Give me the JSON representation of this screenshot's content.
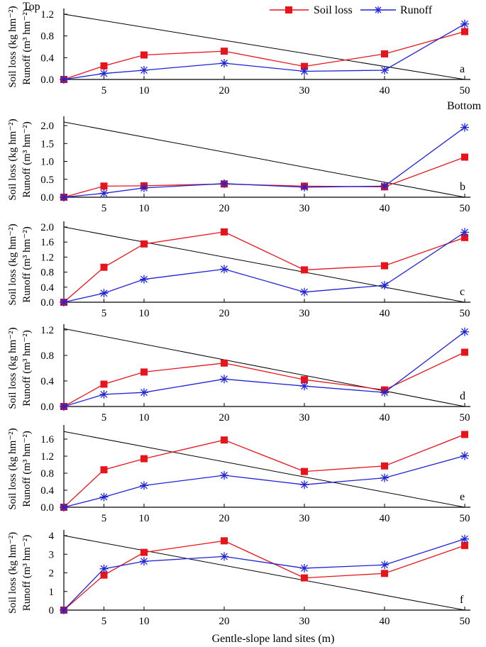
{
  "chart_data": {
    "type": "line",
    "xlabel": "Gentle-slope land sites (m)",
    "x": [
      0,
      5,
      10,
      20,
      30,
      40,
      50
    ],
    "xticks": [
      5,
      10,
      20,
      30,
      40,
      50
    ],
    "top_label": "Top",
    "bottom_label": "Bottom",
    "ylabel_line1": "Soil loss (kg hm⁻²)",
    "ylabel_line2": "Runoff (m³ hm⁻²)",
    "legend": [
      {
        "name": "Soil loss",
        "color": "#e8141c",
        "marker": "square"
      },
      {
        "name": "Runoff",
        "color": "#1f23d8",
        "marker": "asterisk"
      }
    ],
    "panels": [
      {
        "letter": "a",
        "ylim": [
          0,
          1.2
        ],
        "yticks": [
          "0.0",
          "0.4",
          "0.8",
          "1.2"
        ],
        "slope_line": [
          [
            0,
            1.2
          ],
          [
            50,
            0
          ]
        ],
        "series": [
          {
            "name": "Soil loss",
            "values": [
              0,
              0.25,
              0.45,
              0.52,
              0.24,
              0.47,
              0.88
            ]
          },
          {
            "name": "Runoff",
            "values": [
              0,
              0.11,
              0.17,
              0.3,
              0.15,
              0.17,
              1.02
            ]
          }
        ]
      },
      {
        "letter": "b",
        "ylim": [
          0,
          2.1
        ],
        "yticks": [
          "0.0",
          "0.5",
          "1.0",
          "1.5",
          "2.0"
        ],
        "slope_line": [
          [
            0,
            2.1
          ],
          [
            50,
            0
          ]
        ],
        "series": [
          {
            "name": "Soil loss",
            "values": [
              0,
              0.31,
              0.32,
              0.37,
              0.31,
              0.29,
              1.12
            ]
          },
          {
            "name": "Runoff",
            "values": [
              0,
              0.11,
              0.26,
              0.38,
              0.28,
              0.31,
              1.95
            ]
          }
        ]
      },
      {
        "letter": "c",
        "ylim": [
          0,
          2.0
        ],
        "yticks": [
          "0.0",
          "0.4",
          "0.8",
          "1.2",
          "1.6",
          "2.0"
        ],
        "slope_line": [
          [
            0,
            2.0
          ],
          [
            50,
            0
          ]
        ],
        "series": [
          {
            "name": "Soil loss",
            "values": [
              0,
              0.93,
              1.55,
              1.87,
              0.86,
              0.97,
              1.72
            ]
          },
          {
            "name": "Runoff",
            "values": [
              0,
              0.24,
              0.61,
              0.88,
              0.27,
              0.45,
              1.86
            ]
          }
        ]
      },
      {
        "letter": "d",
        "ylim": [
          0,
          1.2
        ],
        "yticks": [
          "0.0",
          "0.4",
          "0.8",
          "1.2"
        ],
        "slope_line": [
          [
            0,
            1.22
          ],
          [
            50,
            0
          ]
        ],
        "series": [
          {
            "name": "Soil loss",
            "values": [
              0,
              0.35,
              0.54,
              0.68,
              0.42,
              0.26,
              0.85
            ]
          },
          {
            "name": "Runoff",
            "values": [
              0,
              0.19,
              0.22,
              0.43,
              0.32,
              0.22,
              1.17
            ]
          }
        ]
      },
      {
        "letter": "e",
        "ylim": [
          0,
          1.8
        ],
        "yticks": [
          "0.0",
          "0.4",
          "0.8",
          "1.2",
          "1.6"
        ],
        "slope_line": [
          [
            0,
            1.78
          ],
          [
            50,
            0
          ]
        ],
        "series": [
          {
            "name": "Soil loss",
            "values": [
              0,
              0.88,
              1.14,
              1.58,
              0.84,
              0.97,
              1.71
            ]
          },
          {
            "name": "Runoff",
            "values": [
              0,
              0.24,
              0.51,
              0.75,
              0.53,
              0.69,
              1.21
            ]
          }
        ]
      },
      {
        "letter": "f",
        "ylim": [
          0,
          4
        ],
        "yticks": [
          "0",
          "1",
          "2",
          "3",
          "4"
        ],
        "slope_line": [
          [
            0,
            4
          ],
          [
            50,
            0
          ]
        ],
        "series": [
          {
            "name": "Soil loss",
            "values": [
              0,
              1.88,
              3.1,
              3.72,
              1.73,
              1.97,
              3.47
            ]
          },
          {
            "name": "Runoff",
            "values": [
              0,
              2.22,
              2.62,
              2.88,
              2.25,
              2.43,
              3.82
            ]
          }
        ]
      }
    ]
  }
}
